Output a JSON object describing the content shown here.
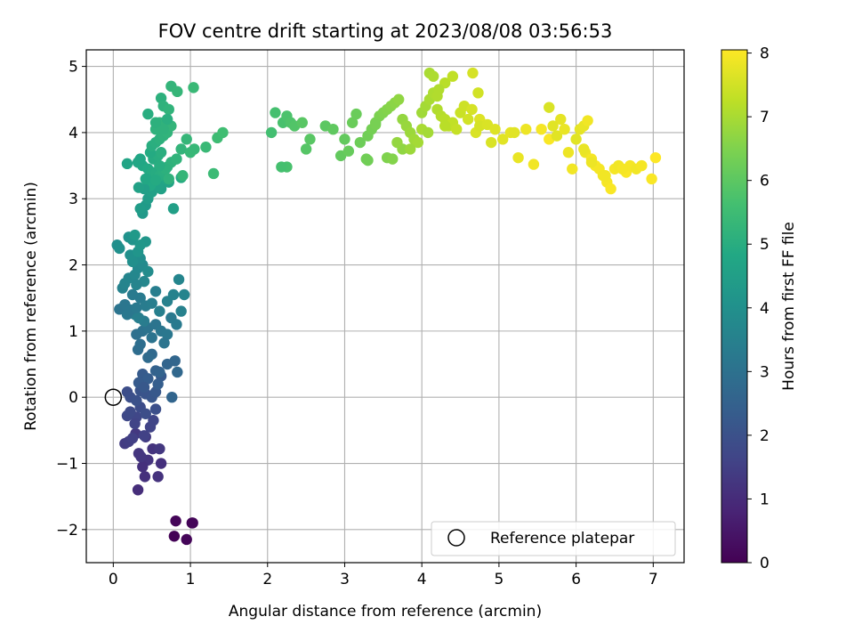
{
  "chart_data": {
    "type": "scatter",
    "title": "FOV centre drift starting at 2023/08/08 03:56:53",
    "xlabel": "Angular distance from reference (arcmin)",
    "ylabel": "Rotation from reference (arcmin)",
    "xlim": [
      -0.35,
      7.4
    ],
    "ylim": [
      -2.5,
      5.25
    ],
    "xticks": [
      0,
      1,
      2,
      3,
      4,
      5,
      6,
      7
    ],
    "yticks": [
      -2,
      -1,
      0,
      1,
      2,
      3,
      4,
      5
    ],
    "xtick_labels": [
      "0",
      "1",
      "2",
      "3",
      "4",
      "5",
      "6",
      "7"
    ],
    "ytick_labels": [
      "−2",
      "−1",
      "0",
      "1",
      "2",
      "3",
      "4",
      "5"
    ],
    "grid": true,
    "legend": {
      "position": "lower-right",
      "entries": [
        "Reference platepar"
      ]
    },
    "colorbar": {
      "label": "Hours from first FF file",
      "colormap": "viridis",
      "range": [
        0,
        8.05
      ],
      "ticks": [
        0,
        1,
        2,
        3,
        4,
        5,
        6,
        7,
        8
      ],
      "tick_labels": [
        "0",
        "1",
        "2",
        "3",
        "4",
        "5",
        "6",
        "7",
        "8"
      ]
    },
    "reference_point": {
      "x": 0,
      "y": 0,
      "label": "Reference platepar"
    },
    "series": [
      {
        "x": [
          0.81,
          1.02,
          0.95,
          1.03
        ],
        "y": [
          -1.87,
          -1.9,
          -2.15,
          -1.9
        ],
        "hours": [
          0.1,
          0.1,
          0.1,
          0.1
        ]
      },
      {
        "x": [
          0.79
        ],
        "y": [
          -2.1
        ],
        "hours": [
          0.05
        ]
      },
      {
        "x": [
          0.32,
          0.41,
          0.58,
          0.62,
          0.45,
          0.38,
          0.33,
          0.51,
          0.6,
          0.29,
          0.42,
          0.36
        ],
        "y": [
          -1.4,
          -1.2,
          -1.2,
          -1.0,
          -0.95,
          -1.05,
          -0.85,
          -0.78,
          -0.78,
          -0.55,
          -0.6,
          -0.9
        ],
        "hours": [
          1.05,
          1.1,
          1.15,
          1.1,
          1.2,
          1.1,
          1.25,
          1.2,
          1.3,
          1.3,
          1.35,
          1.25
        ]
      },
      {
        "x": [
          0.15,
          0.2,
          0.25,
          0.4,
          0.48,
          0.52,
          0.3,
          0.18,
          0.22,
          0.35,
          0.42,
          0.55,
          0.28
        ],
        "y": [
          -0.7,
          -0.67,
          -0.62,
          -0.58,
          -0.45,
          -0.35,
          -0.3,
          -0.28,
          -0.22,
          -0.15,
          -0.25,
          -0.18,
          -0.4
        ],
        "hours": [
          1.4,
          1.45,
          1.5,
          1.55,
          1.6,
          1.65,
          1.7,
          1.75,
          1.8,
          1.85,
          1.9,
          1.95,
          1.6
        ]
      },
      {
        "x": [
          0.18,
          0.22,
          0.3,
          0.35,
          0.42,
          0.5,
          0.55,
          0.62,
          0.38,
          0.45,
          0.58,
          0.76,
          0.33,
          0.4
        ],
        "y": [
          0.08,
          0.0,
          -0.05,
          0.1,
          0.05,
          0.0,
          0.08,
          0.32,
          0.35,
          0.28,
          0.2,
          0.0,
          0.22,
          0.15
        ],
        "hours": [
          1.9,
          1.95,
          2.0,
          2.05,
          2.1,
          2.15,
          2.2,
          2.25,
          2.3,
          2.35,
          2.4,
          2.6,
          2.3,
          2.2
        ]
      },
      {
        "x": [
          0.55,
          0.6,
          0.7,
          0.8,
          0.83,
          0.5,
          0.45,
          0.32,
          0.35
        ],
        "y": [
          0.4,
          0.38,
          0.5,
          0.55,
          0.38,
          0.65,
          0.6,
          0.72,
          0.8
        ],
        "hours": [
          2.5,
          2.55,
          2.6,
          2.65,
          2.7,
          2.75,
          2.8,
          2.85,
          2.9
        ]
      },
      {
        "x": [
          0.3,
          0.38,
          0.45,
          0.55,
          0.62,
          0.7,
          0.75,
          0.82,
          0.4,
          0.33,
          0.28,
          0.5,
          0.66
        ],
        "y": [
          0.95,
          1.0,
          1.05,
          1.1,
          1.0,
          0.95,
          1.2,
          1.1,
          1.15,
          1.2,
          1.25,
          0.9,
          0.82
        ],
        "hours": [
          2.95,
          3.0,
          3.05,
          3.1,
          3.15,
          3.2,
          3.25,
          3.3,
          3.35,
          3.4,
          3.45,
          3.05,
          3.1
        ]
      },
      {
        "x": [
          0.08,
          0.15,
          0.22,
          0.3,
          0.35,
          0.42,
          0.5,
          0.6,
          0.7,
          0.78,
          0.92,
          0.85,
          0.88,
          0.55,
          0.25,
          0.18
        ],
        "y": [
          1.33,
          1.4,
          1.32,
          1.35,
          1.5,
          1.38,
          1.42,
          1.3,
          1.45,
          1.55,
          1.55,
          1.78,
          1.3,
          1.6,
          1.55,
          1.25
        ],
        "hours": [
          3.1,
          3.15,
          3.2,
          3.25,
          3.3,
          3.35,
          3.4,
          3.45,
          3.5,
          3.55,
          3.6,
          3.65,
          3.5,
          3.4,
          3.3,
          3.2
        ]
      },
      {
        "x": [
          0.12,
          0.15,
          0.2,
          0.28,
          0.32,
          0.38,
          0.45,
          0.35,
          0.25,
          0.22,
          0.4,
          0.3
        ],
        "y": [
          1.65,
          1.72,
          1.8,
          1.85,
          1.95,
          2.0,
          1.9,
          2.1,
          2.05,
          2.15,
          1.75,
          1.7
        ],
        "hours": [
          3.55,
          3.6,
          3.65,
          3.7,
          3.75,
          3.8,
          3.85,
          3.9,
          3.95,
          4.0,
          3.7,
          3.6
        ]
      },
      {
        "x": [
          0.05,
          0.08,
          0.2,
          0.25,
          0.32,
          0.42,
          0.35,
          0.28
        ],
        "y": [
          2.3,
          2.25,
          2.42,
          2.38,
          2.2,
          2.35,
          2.3,
          2.45
        ],
        "hours": [
          3.95,
          4.0,
          4.05,
          4.1,
          4.15,
          4.2,
          4.25,
          4.3
        ]
      },
      {
        "x": [
          0.38,
          0.42,
          0.35,
          0.45,
          0.78,
          0.5,
          0.62,
          0.58,
          0.72,
          0.68,
          0.55,
          0.48,
          0.88,
          0.65,
          0.4,
          0.33
        ],
        "y": [
          2.78,
          2.9,
          2.85,
          3.0,
          2.85,
          3.1,
          3.15,
          3.2,
          3.25,
          3.3,
          3.35,
          3.2,
          3.32,
          3.4,
          3.15,
          3.17
        ],
        "hours": [
          4.3,
          4.35,
          4.4,
          4.45,
          4.5,
          4.55,
          4.6,
          4.65,
          4.7,
          4.75,
          4.8,
          4.85,
          4.9,
          4.95,
          4.5,
          4.6
        ]
      },
      {
        "x": [
          0.18,
          0.32,
          0.38,
          0.45,
          0.5,
          0.55,
          0.6,
          0.65,
          0.7,
          0.75,
          0.82,
          0.88,
          0.52,
          0.58,
          0.62,
          0.48,
          0.42,
          0.35,
          0.68,
          0.72,
          0.55,
          0.6
        ],
        "y": [
          3.53,
          3.55,
          3.5,
          3.45,
          3.4,
          3.38,
          3.35,
          3.42,
          3.48,
          3.55,
          3.6,
          3.75,
          3.6,
          3.65,
          3.7,
          3.7,
          3.3,
          3.6,
          3.45,
          3.3,
          3.28,
          3.5
        ],
        "hours": [
          4.7,
          4.75,
          4.8,
          4.85,
          4.9,
          4.95,
          5.0,
          5.05,
          5.1,
          5.15,
          5.2,
          5.25,
          4.95,
          5.0,
          5.05,
          4.9,
          4.8,
          4.75,
          5.1,
          5.15,
          4.9,
          5.0
        ]
      },
      {
        "x": [
          0.5,
          0.55,
          0.6,
          0.65,
          0.7,
          0.75,
          0.55,
          0.6,
          0.7,
          0.95,
          1.05,
          1.2,
          1.3,
          1.35,
          1.42,
          0.9,
          1.0
        ],
        "y": [
          3.8,
          3.85,
          3.9,
          3.95,
          4.0,
          4.1,
          4.05,
          4.15,
          4.2,
          3.9,
          3.75,
          3.78,
          3.38,
          3.92,
          4.0,
          3.35,
          3.7
        ],
        "hours": [
          5.0,
          5.05,
          5.1,
          5.15,
          5.2,
          5.25,
          5.15,
          5.2,
          5.25,
          5.3,
          5.35,
          5.4,
          5.45,
          5.5,
          5.55,
          5.3,
          5.35
        ]
      },
      {
        "x": [
          0.45,
          0.62,
          0.65,
          0.72,
          0.75,
          0.7,
          0.83,
          1.04,
          0.65,
          0.55
        ],
        "y": [
          4.28,
          4.52,
          4.4,
          4.35,
          4.7,
          4.2,
          4.62,
          4.68,
          4.05,
          4.15
        ],
        "hours": [
          5.0,
          5.1,
          5.15,
          5.2,
          5.25,
          5.05,
          5.3,
          5.4,
          5.15,
          5.1
        ]
      },
      {
        "x": [
          2.05,
          2.1,
          2.2,
          2.25,
          2.3,
          2.35,
          2.25,
          2.5,
          2.55,
          2.75,
          2.85,
          2.95,
          3.05,
          3.1,
          3.2,
          3.28,
          2.18,
          2.45,
          3.0,
          3.15
        ],
        "y": [
          4.0,
          4.3,
          4.15,
          4.25,
          4.15,
          4.1,
          3.48,
          3.75,
          3.9,
          4.1,
          4.05,
          3.65,
          3.72,
          4.15,
          3.85,
          3.6,
          3.48,
          4.15,
          3.9,
          4.28
        ],
        "hours": [
          5.6,
          5.65,
          5.7,
          5.75,
          5.8,
          5.85,
          5.7,
          5.9,
          5.95,
          6.0,
          6.05,
          6.1,
          6.15,
          6.2,
          6.25,
          6.3,
          5.65,
          5.95,
          6.1,
          6.2
        ]
      },
      {
        "x": [
          3.3,
          3.35,
          3.4,
          3.45,
          3.5,
          3.55,
          3.6,
          3.65,
          3.7,
          3.75,
          3.8,
          3.85,
          3.9,
          3.95,
          4.0,
          3.55,
          3.62,
          3.75,
          3.68,
          3.85,
          3.3,
          3.4
        ],
        "y": [
          3.95,
          4.05,
          4.15,
          4.25,
          4.3,
          4.35,
          4.4,
          4.45,
          4.5,
          4.2,
          4.1,
          4.0,
          3.9,
          3.85,
          4.05,
          3.62,
          3.6,
          3.75,
          3.85,
          3.75,
          3.58,
          4.12
        ],
        "hours": [
          6.3,
          6.35,
          6.4,
          6.45,
          6.5,
          6.55,
          6.6,
          6.65,
          6.7,
          6.75,
          6.8,
          6.85,
          6.9,
          6.95,
          7.0,
          6.5,
          6.55,
          6.7,
          6.75,
          6.85,
          6.3,
          6.4
        ]
      },
      {
        "x": [
          4.0,
          4.05,
          4.1,
          4.15,
          4.2,
          4.25,
          4.3,
          4.35,
          4.4,
          4.45,
          4.5,
          4.55,
          4.6,
          4.65,
          4.7,
          4.75,
          4.1,
          4.15,
          4.2,
          4.3,
          4.08,
          4.66,
          4.22,
          4.3,
          4.4
        ],
        "y": [
          4.3,
          4.4,
          4.5,
          4.6,
          4.35,
          4.25,
          4.2,
          4.1,
          4.15,
          4.05,
          4.3,
          4.4,
          4.2,
          4.35,
          4.0,
          4.2,
          4.9,
          4.85,
          4.55,
          4.75,
          4.0,
          4.9,
          4.65,
          4.1,
          4.85
        ],
        "hours": [
          6.9,
          6.95,
          7.0,
          7.05,
          7.1,
          7.15,
          7.2,
          7.25,
          7.3,
          7.35,
          7.4,
          7.45,
          7.5,
          7.55,
          7.6,
          7.65,
          7.0,
          7.05,
          7.1,
          7.2,
          6.95,
          7.55,
          7.1,
          7.2,
          7.3
        ]
      },
      {
        "x": [
          4.73,
          4.75,
          4.85,
          4.95,
          5.05,
          5.15,
          5.25,
          5.35,
          5.45,
          5.55,
          5.65,
          5.75,
          5.8,
          5.85,
          5.9,
          5.95,
          5.7,
          5.65,
          4.9,
          5.2
        ],
        "y": [
          4.6,
          4.1,
          4.12,
          4.05,
          3.9,
          4.0,
          3.62,
          4.05,
          3.52,
          4.05,
          3.9,
          3.95,
          4.2,
          4.05,
          3.7,
          3.45,
          4.1,
          4.38,
          3.85,
          4.0
        ],
        "hours": [
          7.5,
          7.55,
          7.6,
          7.65,
          7.7,
          7.75,
          7.8,
          7.85,
          7.9,
          7.95,
          8.0,
          7.7,
          7.75,
          7.8,
          7.85,
          7.9,
          7.7,
          7.6,
          7.6,
          7.7
        ]
      },
      {
        "x": [
          6.0,
          6.05,
          6.1,
          6.12,
          6.15,
          6.2,
          6.25,
          6.3,
          6.35,
          6.4,
          6.45,
          6.5,
          6.55,
          6.6,
          6.65,
          6.7,
          6.78,
          6.85,
          6.98,
          7.03,
          6.38,
          6.6,
          6.1,
          6.2
        ],
        "y": [
          3.9,
          4.05,
          4.1,
          3.7,
          4.18,
          3.6,
          3.5,
          3.45,
          3.35,
          3.25,
          3.15,
          3.45,
          3.5,
          3.45,
          3.4,
          3.5,
          3.45,
          3.5,
          3.3,
          3.62,
          3.35,
          3.45,
          3.75,
          3.55
        ],
        "hours": [
          7.7,
          7.75,
          7.8,
          7.85,
          7.9,
          7.95,
          8.0,
          7.95,
          7.9,
          7.95,
          8.0,
          7.95,
          7.9,
          7.95,
          8.0,
          7.95,
          7.9,
          7.95,
          8.0,
          8.05,
          7.9,
          7.95,
          7.8,
          7.85
        ]
      }
    ]
  }
}
